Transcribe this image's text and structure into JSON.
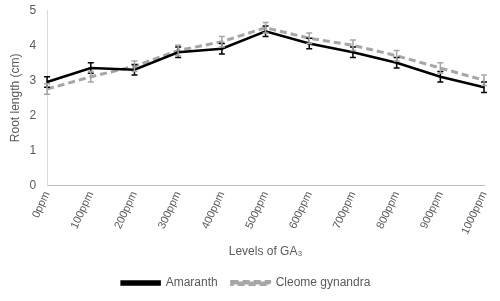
{
  "chart_data": {
    "type": "line",
    "x_label": "Levels of GA₃",
    "y_label": "Root length (cm)",
    "categories": [
      "0ppm",
      "100ppm",
      "200ppm",
      "300ppm",
      "400ppm",
      "500ppm",
      "600ppm",
      "700ppm",
      "800ppm",
      "900ppm",
      "1000ppm"
    ],
    "series": [
      {
        "name": "Amaranth",
        "color": "#000000",
        "line_style": "solid",
        "values": [
          2.95,
          3.35,
          3.3,
          3.8,
          3.9,
          4.4,
          4.05,
          3.8,
          3.5,
          3.1,
          2.8
        ],
        "errors": [
          0.15,
          0.15,
          0.15,
          0.15,
          0.15,
          0.15,
          0.15,
          0.15,
          0.15,
          0.15,
          0.15
        ]
      },
      {
        "name": "Cleome gynandra",
        "color": "#a6a6a6",
        "line_style": "dashed",
        "values": [
          2.75,
          3.1,
          3.4,
          3.85,
          4.1,
          4.5,
          4.2,
          4.0,
          3.7,
          3.35,
          3.0
        ],
        "errors": [
          0.15,
          0.15,
          0.15,
          0.15,
          0.15,
          0.15,
          0.15,
          0.15,
          0.15,
          0.15,
          0.15
        ]
      }
    ],
    "ylim": [
      0,
      5
    ],
    "yticks": [
      0,
      1,
      2,
      3,
      4,
      5
    ],
    "grid": false,
    "legend": "bottom"
  }
}
